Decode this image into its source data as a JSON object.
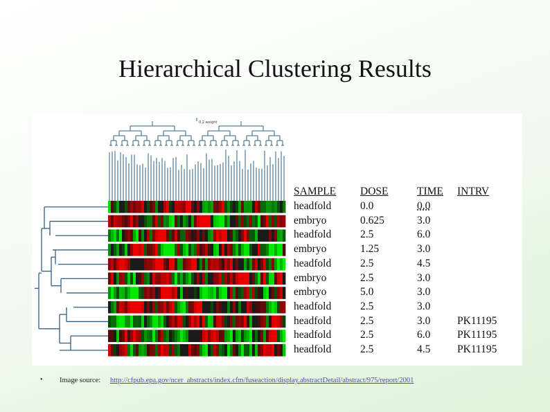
{
  "slide": {
    "title": "Hierarchical Clustering Results"
  },
  "figure": {
    "weight_label": "0.2 weight",
    "table": {
      "headers": {
        "sample": "SAMPLE",
        "dose": "DOSE",
        "time": "TIME",
        "intrv": "INTRV"
      },
      "rows": [
        {
          "sample": "headfold",
          "dose": "0.0",
          "time": "0.0",
          "intrv": ""
        },
        {
          "sample": "embryo",
          "dose": "0.625",
          "time": "3.0",
          "intrv": ""
        },
        {
          "sample": "headfold",
          "dose": "2.5",
          "time": "6.0",
          "intrv": ""
        },
        {
          "sample": "embryo",
          "dose": "1.25",
          "time": "3.0",
          "intrv": ""
        },
        {
          "sample": "headfold",
          "dose": "2.5",
          "time": "4.5",
          "intrv": ""
        },
        {
          "sample": "embryo",
          "dose": "2.5",
          "time": "3.0",
          "intrv": ""
        },
        {
          "sample": "embryo",
          "dose": "5.0",
          "time": "3.0",
          "intrv": ""
        },
        {
          "sample": "headfold",
          "dose": "2.5",
          "time": "3.0",
          "intrv": ""
        },
        {
          "sample": "headfold",
          "dose": "2.5",
          "time": "3.0",
          "intrv": "PK11195"
        },
        {
          "sample": "headfold",
          "dose": "2.5",
          "time": "6.0",
          "intrv": "PK11195"
        },
        {
          "sample": "headfold",
          "dose": "2.5",
          "time": "4.5",
          "intrv": "PK11195"
        }
      ]
    },
    "colors": {
      "dendrogram": "#2f5f86",
      "high": "#e01010",
      "low": "#10c010",
      "neutral": "#1a1a1a"
    }
  },
  "footer": {
    "bullet": "•",
    "label": "Image source:",
    "link_text": "http://cfpub.epa.gov/ncer_abstracts/index.cfm/fuseaction/display.abstractDetail/abstract/975/report/2001"
  }
}
